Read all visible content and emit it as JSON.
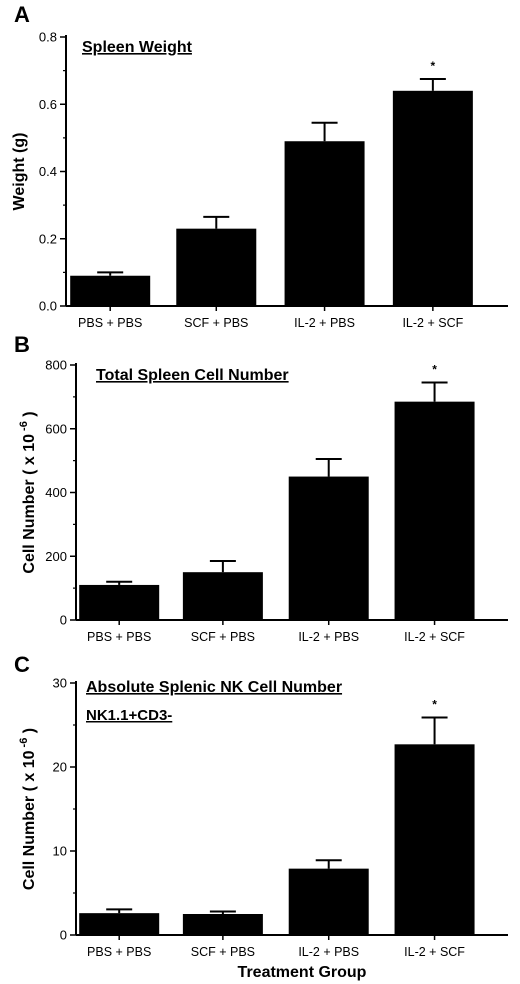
{
  "chart_data": [
    {
      "type": "bar",
      "panel": "A",
      "title": "Spleen Weight",
      "subtitle": "",
      "ylabel": "Weight (g)",
      "xlabel": "",
      "categories": [
        "PBS + PBS",
        "SCF + PBS",
        "IL-2 + PBS",
        "IL-2 + SCF"
      ],
      "values": [
        0.09,
        0.23,
        0.49,
        0.64
      ],
      "errors": [
        0.01,
        0.035,
        0.055,
        0.035
      ],
      "significance": [
        "",
        "",
        "",
        "*"
      ],
      "ylim": [
        0,
        0.8
      ],
      "yticks": [
        0.0,
        0.2,
        0.4,
        0.6,
        0.8
      ],
      "ytick_labels": [
        "0.0",
        "0.2",
        "0.4",
        "0.6",
        "0.8"
      ],
      "grid": false
    },
    {
      "type": "bar",
      "panel": "B",
      "title": "Total Spleen Cell Number",
      "subtitle": "",
      "ylabel": "Cell Number ( x 10",
      "ylabel_sup": "-6",
      "ylabel_close": ")",
      "xlabel": "",
      "categories": [
        "PBS + PBS",
        "SCF + PBS",
        "IL-2 + PBS",
        "IL-2 + SCF"
      ],
      "values": [
        110,
        150,
        450,
        685
      ],
      "errors": [
        10,
        35,
        55,
        60
      ],
      "significance": [
        "",
        "",
        "",
        "*"
      ],
      "ylim": [
        0,
        800
      ],
      "yticks": [
        0,
        200,
        400,
        600,
        800
      ],
      "ytick_labels": [
        "0",
        "200",
        "400",
        "600",
        "800"
      ],
      "grid": false
    },
    {
      "type": "bar",
      "panel": "C",
      "title": "Absolute Splenic NK Cell Number",
      "subtitle": "NK1.1+CD3-",
      "ylabel": "Cell Number ( x 10",
      "ylabel_sup": "-6",
      "ylabel_close": ")",
      "xlabel": "Treatment Group",
      "categories": [
        "PBS + PBS",
        "SCF + PBS",
        "IL-2 + PBS",
        "IL-2 + SCF"
      ],
      "values": [
        2.6,
        2.5,
        7.9,
        22.7
      ],
      "errors": [
        0.45,
        0.3,
        1.0,
        3.2
      ],
      "significance": [
        "",
        "",
        "",
        "*"
      ],
      "ylim": [
        0,
        30
      ],
      "yticks": [
        0,
        10,
        20,
        30
      ],
      "ytick_labels": [
        "0",
        "10",
        "20",
        "30"
      ],
      "grid": false
    }
  ],
  "colors": {
    "bar": "#000000",
    "axis": "#000000",
    "background": "#ffffff"
  }
}
